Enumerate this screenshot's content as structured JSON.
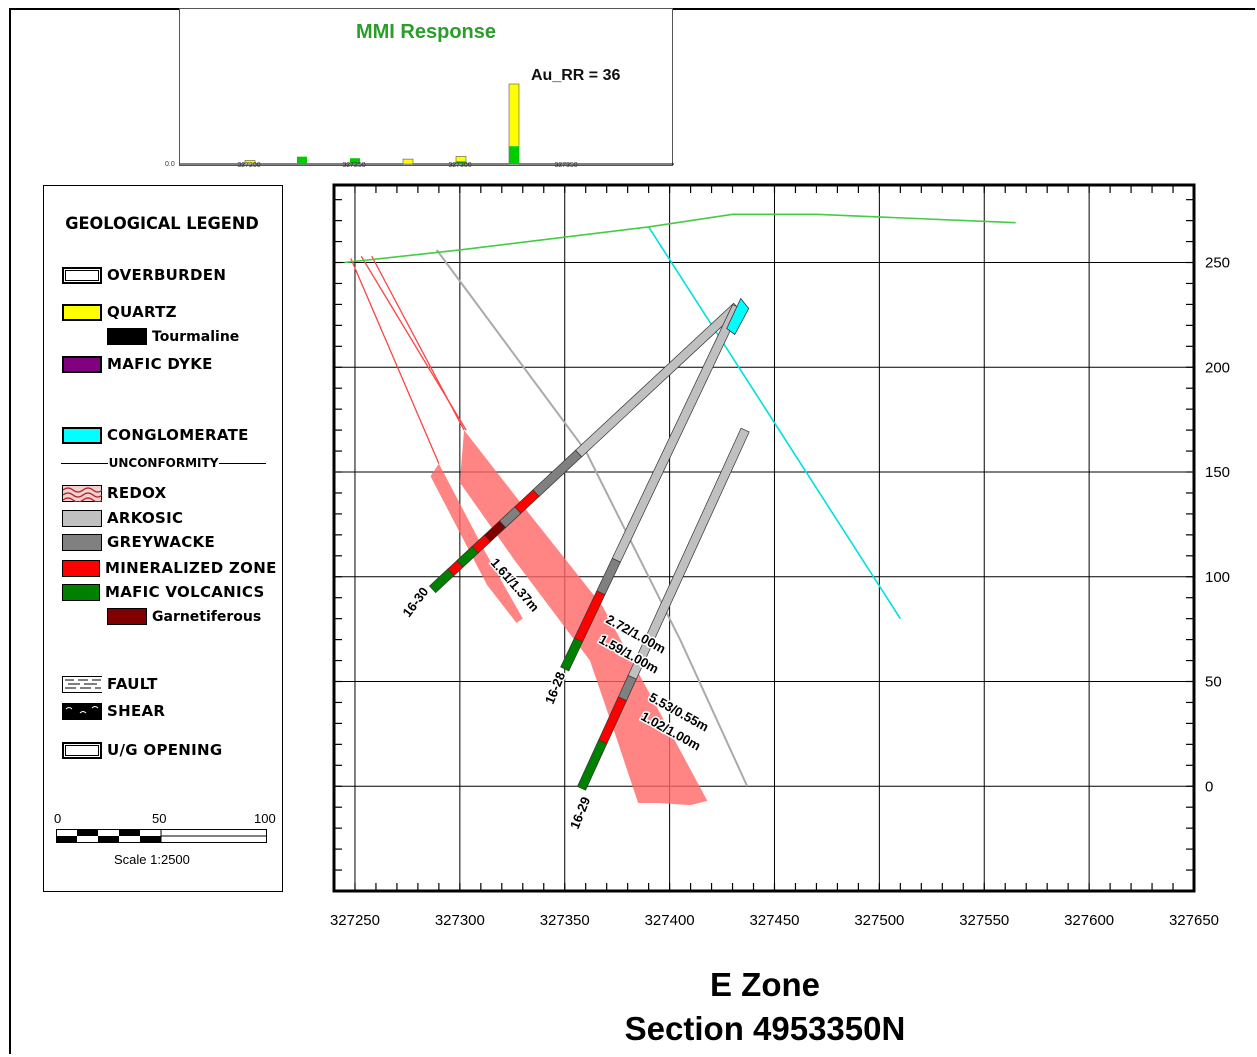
{
  "mmi": {
    "title": "MMI Response",
    "label": "Au_RR = 36",
    "zero_label": "0.0",
    "tick_labels": [
      "327200",
      "327250",
      "327300",
      "327350"
    ],
    "bars": [
      {
        "yellow": 1.6,
        "green": 0
      },
      {
        "yellow": 0,
        "green": 3.3
      },
      {
        "yellow": 0,
        "green": 2.6
      },
      {
        "yellow": 2.2,
        "green": 0
      },
      {
        "yellow": 3.4,
        "green": 1.2
      },
      {
        "yellow": 36,
        "green": 8
      }
    ],
    "colors": {
      "yellow": "#ffff00",
      "green": "#00cc00",
      "title": "#2a9d2a"
    }
  },
  "legend": {
    "title": "GEOLOGICAL LEGEND",
    "unconformity": "UNCONFORMITY",
    "items": [
      {
        "label": "OVERBURDEN",
        "color": "#ffffff"
      },
      {
        "label": "QUARTZ",
        "color": "#ffff00"
      },
      {
        "label": "Tourmaline",
        "color": "#000000"
      },
      {
        "label": "MAFIC DYKE",
        "color": "#800080"
      },
      {
        "label": "CONGLOMERATE",
        "color": "#00ffff"
      },
      {
        "label": "REDOX",
        "color": "#cc6666"
      },
      {
        "label": "ARKOSIC",
        "color": "#c0c0c0"
      },
      {
        "label": "GREYWACKE",
        "color": "#808080"
      },
      {
        "label": "MINERALIZED ZONE",
        "color": "#ff0000"
      },
      {
        "label": "MAFIC VOLCANICS",
        "color": "#008000"
      },
      {
        "label": "Garnetiferous",
        "color": "#800000"
      },
      {
        "label": "FAULT",
        "color": "#ffffff"
      },
      {
        "label": "SHEAR",
        "color": "#000000"
      },
      {
        "label": "U/G OPENING",
        "color": "#ffffff"
      }
    ],
    "scale": {
      "ticks": [
        "0",
        "50",
        "100"
      ],
      "label": "Scale 1:2500"
    }
  },
  "section": {
    "x_labels": [
      "327250",
      "327300",
      "327350",
      "327400",
      "327450",
      "327500",
      "327550",
      "327600",
      "327650"
    ],
    "y_labels": [
      "250",
      "200",
      "150",
      "100",
      "50",
      "0"
    ],
    "x_range": [
      327240,
      327650
    ],
    "y_range": [
      -50,
      287
    ],
    "topography": [
      [
        327245,
        250
      ],
      [
        327300,
        256
      ],
      [
        327390,
        267
      ],
      [
        327430,
        273
      ],
      [
        327470,
        273
      ],
      [
        327565,
        269
      ]
    ],
    "holes": [
      {
        "name": "16-30",
        "collar": [
          327432,
          229
        ],
        "toe": [
          327287,
          94
        ],
        "intercept": "1.61/1.37m"
      },
      {
        "name": "16-28",
        "collar": [
          327432,
          229
        ],
        "toe": [
          327350,
          56
        ],
        "intercept_1": "2.72/1.00m",
        "intercept_2": "1.59/1.00m"
      },
      {
        "name": "16-29",
        "collar": [
          327436,
          170
        ],
        "toe": [
          327358,
          -1
        ],
        "intercept_1": "5.53/0.55m",
        "intercept_2": "1.02/1.00m"
      }
    ],
    "title_1": "E Zone",
    "title_2": "Section 4953350N"
  }
}
